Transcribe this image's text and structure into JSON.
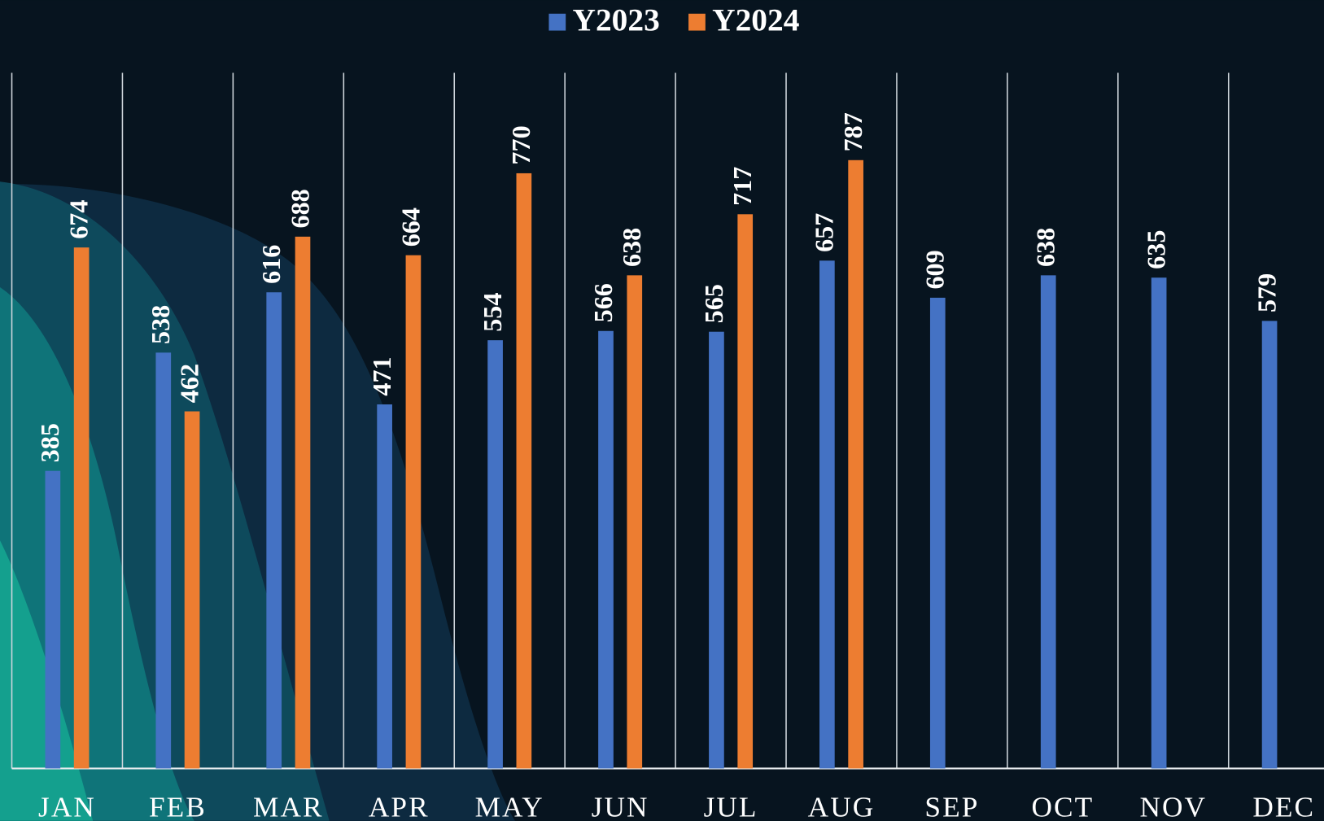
{
  "chart_data": {
    "type": "bar",
    "categories": [
      "JAN",
      "FEB",
      "MAR",
      "APR",
      "MAY",
      "JUN",
      "JUL",
      "AUG",
      "SEP",
      "OCT",
      "NOV",
      "DEC"
    ],
    "series": [
      {
        "name": "Y2023",
        "color": "#4472c4",
        "values": [
          385,
          538,
          616,
          471,
          554,
          566,
          565,
          657,
          609,
          638,
          635,
          579
        ]
      },
      {
        "name": "Y2024",
        "color": "#ed7d31",
        "values": [
          674,
          462,
          688,
          664,
          770,
          638,
          717,
          787,
          null,
          null,
          null,
          null
        ]
      }
    ],
    "ylim": [
      0,
      900
    ],
    "grid": true,
    "legend": "top"
  }
}
